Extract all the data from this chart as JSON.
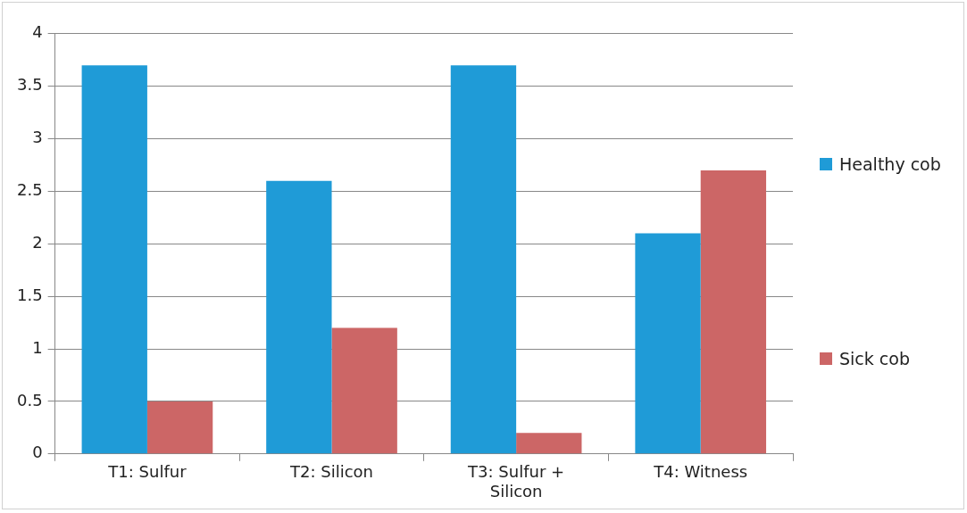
{
  "chart_data": {
    "type": "bar",
    "categories": [
      "T1: Sulfur",
      "T2: Silicon",
      "T3: Sulfur + Silicon",
      "T4: Witness"
    ],
    "series": [
      {
        "name": "Healthy cob",
        "color": "#1f9bd7",
        "values": [
          3.7,
          2.6,
          3.7,
          2.1
        ]
      },
      {
        "name": "Sick cob",
        "color": "#cc6666",
        "values": [
          0.5,
          1.2,
          0.2,
          2.7
        ]
      }
    ],
    "ylim": [
      0,
      4
    ],
    "yticks": [
      0,
      0.5,
      1,
      1.5,
      2,
      2.5,
      3,
      3.5,
      4
    ],
    "grid": "y",
    "legend": "right"
  }
}
